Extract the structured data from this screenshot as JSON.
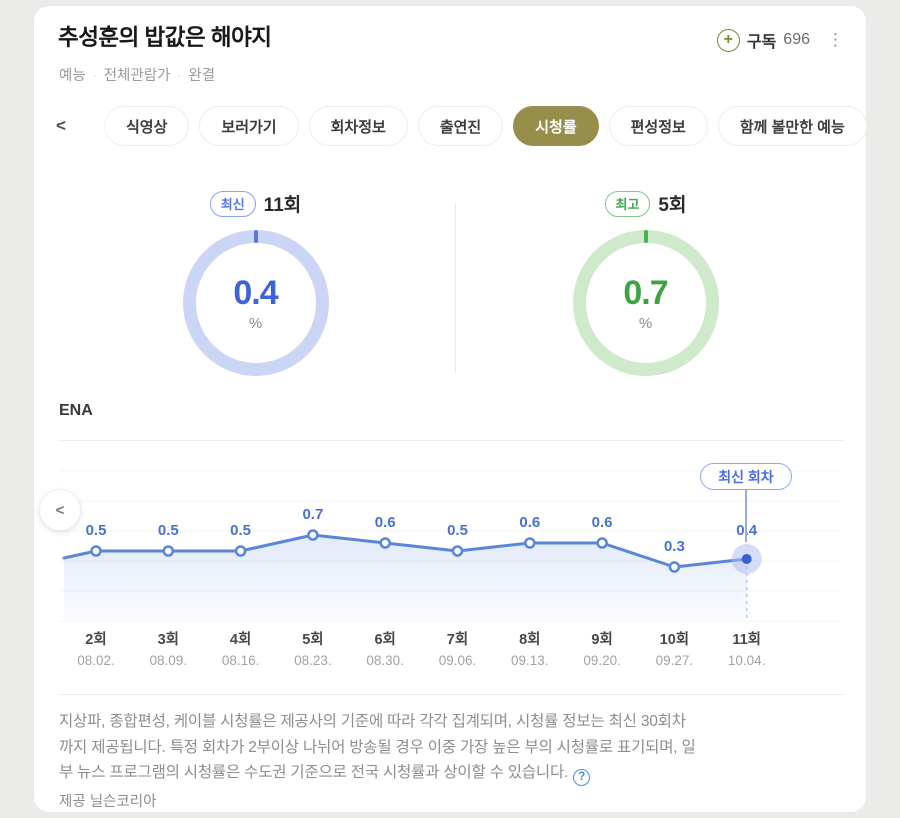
{
  "header": {
    "title": "추성훈의 밥값은 해야지",
    "meta": [
      "예능",
      "전체관람가",
      "완결"
    ],
    "subscribe": {
      "label": "구독",
      "count": "696",
      "plus_icon": "+"
    },
    "menu_icon": "⋮"
  },
  "tabs": {
    "back_chevron": "<",
    "items": [
      {
        "label": "식영상",
        "selected": false
      },
      {
        "label": "보러가기",
        "selected": false
      },
      {
        "label": "회차정보",
        "selected": false
      },
      {
        "label": "출연진",
        "selected": false
      },
      {
        "label": "시청률",
        "selected": true
      },
      {
        "label": "편성정보",
        "selected": false
      },
      {
        "label": "함께 볼만한 예능",
        "selected": false
      }
    ],
    "selected_color": "#988e4c"
  },
  "stats": {
    "latest": {
      "badge": "최신",
      "episode": "11회",
      "value": "0.4",
      "unit": "%",
      "color": "#3e63d8"
    },
    "best": {
      "badge": "최고",
      "episode": "5회",
      "value": "0.7",
      "unit": "%",
      "color": "#3da344"
    }
  },
  "channel": {
    "name": "ENA"
  },
  "chart": {
    "latest_badge": "최신 회차",
    "prev_chevron": "<",
    "line_color": "#5b86d6",
    "points": [
      {
        "episode": "2회",
        "date": "08.02.",
        "value": 0.5
      },
      {
        "episode": "3회",
        "date": "08.09.",
        "value": 0.5
      },
      {
        "episode": "4회",
        "date": "08.16.",
        "value": 0.5
      },
      {
        "episode": "5회",
        "date": "08.23.",
        "value": 0.7
      },
      {
        "episode": "6회",
        "date": "08.30.",
        "value": 0.6
      },
      {
        "episode": "7회",
        "date": "09.06.",
        "value": 0.5
      },
      {
        "episode": "8회",
        "date": "09.13.",
        "value": 0.6
      },
      {
        "episode": "9회",
        "date": "09.20.",
        "value": 0.6
      },
      {
        "episode": "10회",
        "date": "09.27.",
        "value": 0.3
      },
      {
        "episode": "11회",
        "date": "10.04.",
        "value": 0.4
      }
    ]
  },
  "chart_data": [
    {
      "type": "donut",
      "label": "최신",
      "category": "11회",
      "value": 0.4,
      "unit": "%",
      "color": "#3e63d8"
    },
    {
      "type": "donut",
      "label": "최고",
      "category": "5회",
      "value": 0.7,
      "unit": "%",
      "color": "#3da344"
    },
    {
      "type": "line",
      "series_name": "ENA",
      "categories": [
        "2회",
        "3회",
        "4회",
        "5회",
        "6회",
        "7회",
        "8회",
        "9회",
        "10회",
        "11회"
      ],
      "category_dates": [
        "08.02.",
        "08.09.",
        "08.16.",
        "08.23.",
        "08.30.",
        "09.06.",
        "09.13.",
        "09.20.",
        "09.27.",
        "10.04."
      ],
      "values": [
        0.5,
        0.5,
        0.5,
        0.7,
        0.6,
        0.5,
        0.6,
        0.6,
        0.3,
        0.4
      ],
      "unit": "%",
      "ylim": [
        0,
        0.8
      ],
      "grid": true,
      "legend": "none",
      "annotation": {
        "label": "최신 회차",
        "index": 9
      }
    }
  ],
  "footer": {
    "lines": [
      "지상파, 종합편성, 케이블 시청률은 제공사의 기준에 따라 각각 집계되며, 시청률 정보는 최신 30회차",
      "까지 제공됩니다. 특정 회차가 2부이상 나뉘어 방송될 경우 이중 가장 높은 부의 시청률로 표기되며, 일",
      "부 뉴스 프로그램의 시청률은 수도권 기준으로 전국 시청률과 상이할 수 있습니다."
    ],
    "help_label": "?",
    "provider": "제공 닐슨코리아"
  }
}
